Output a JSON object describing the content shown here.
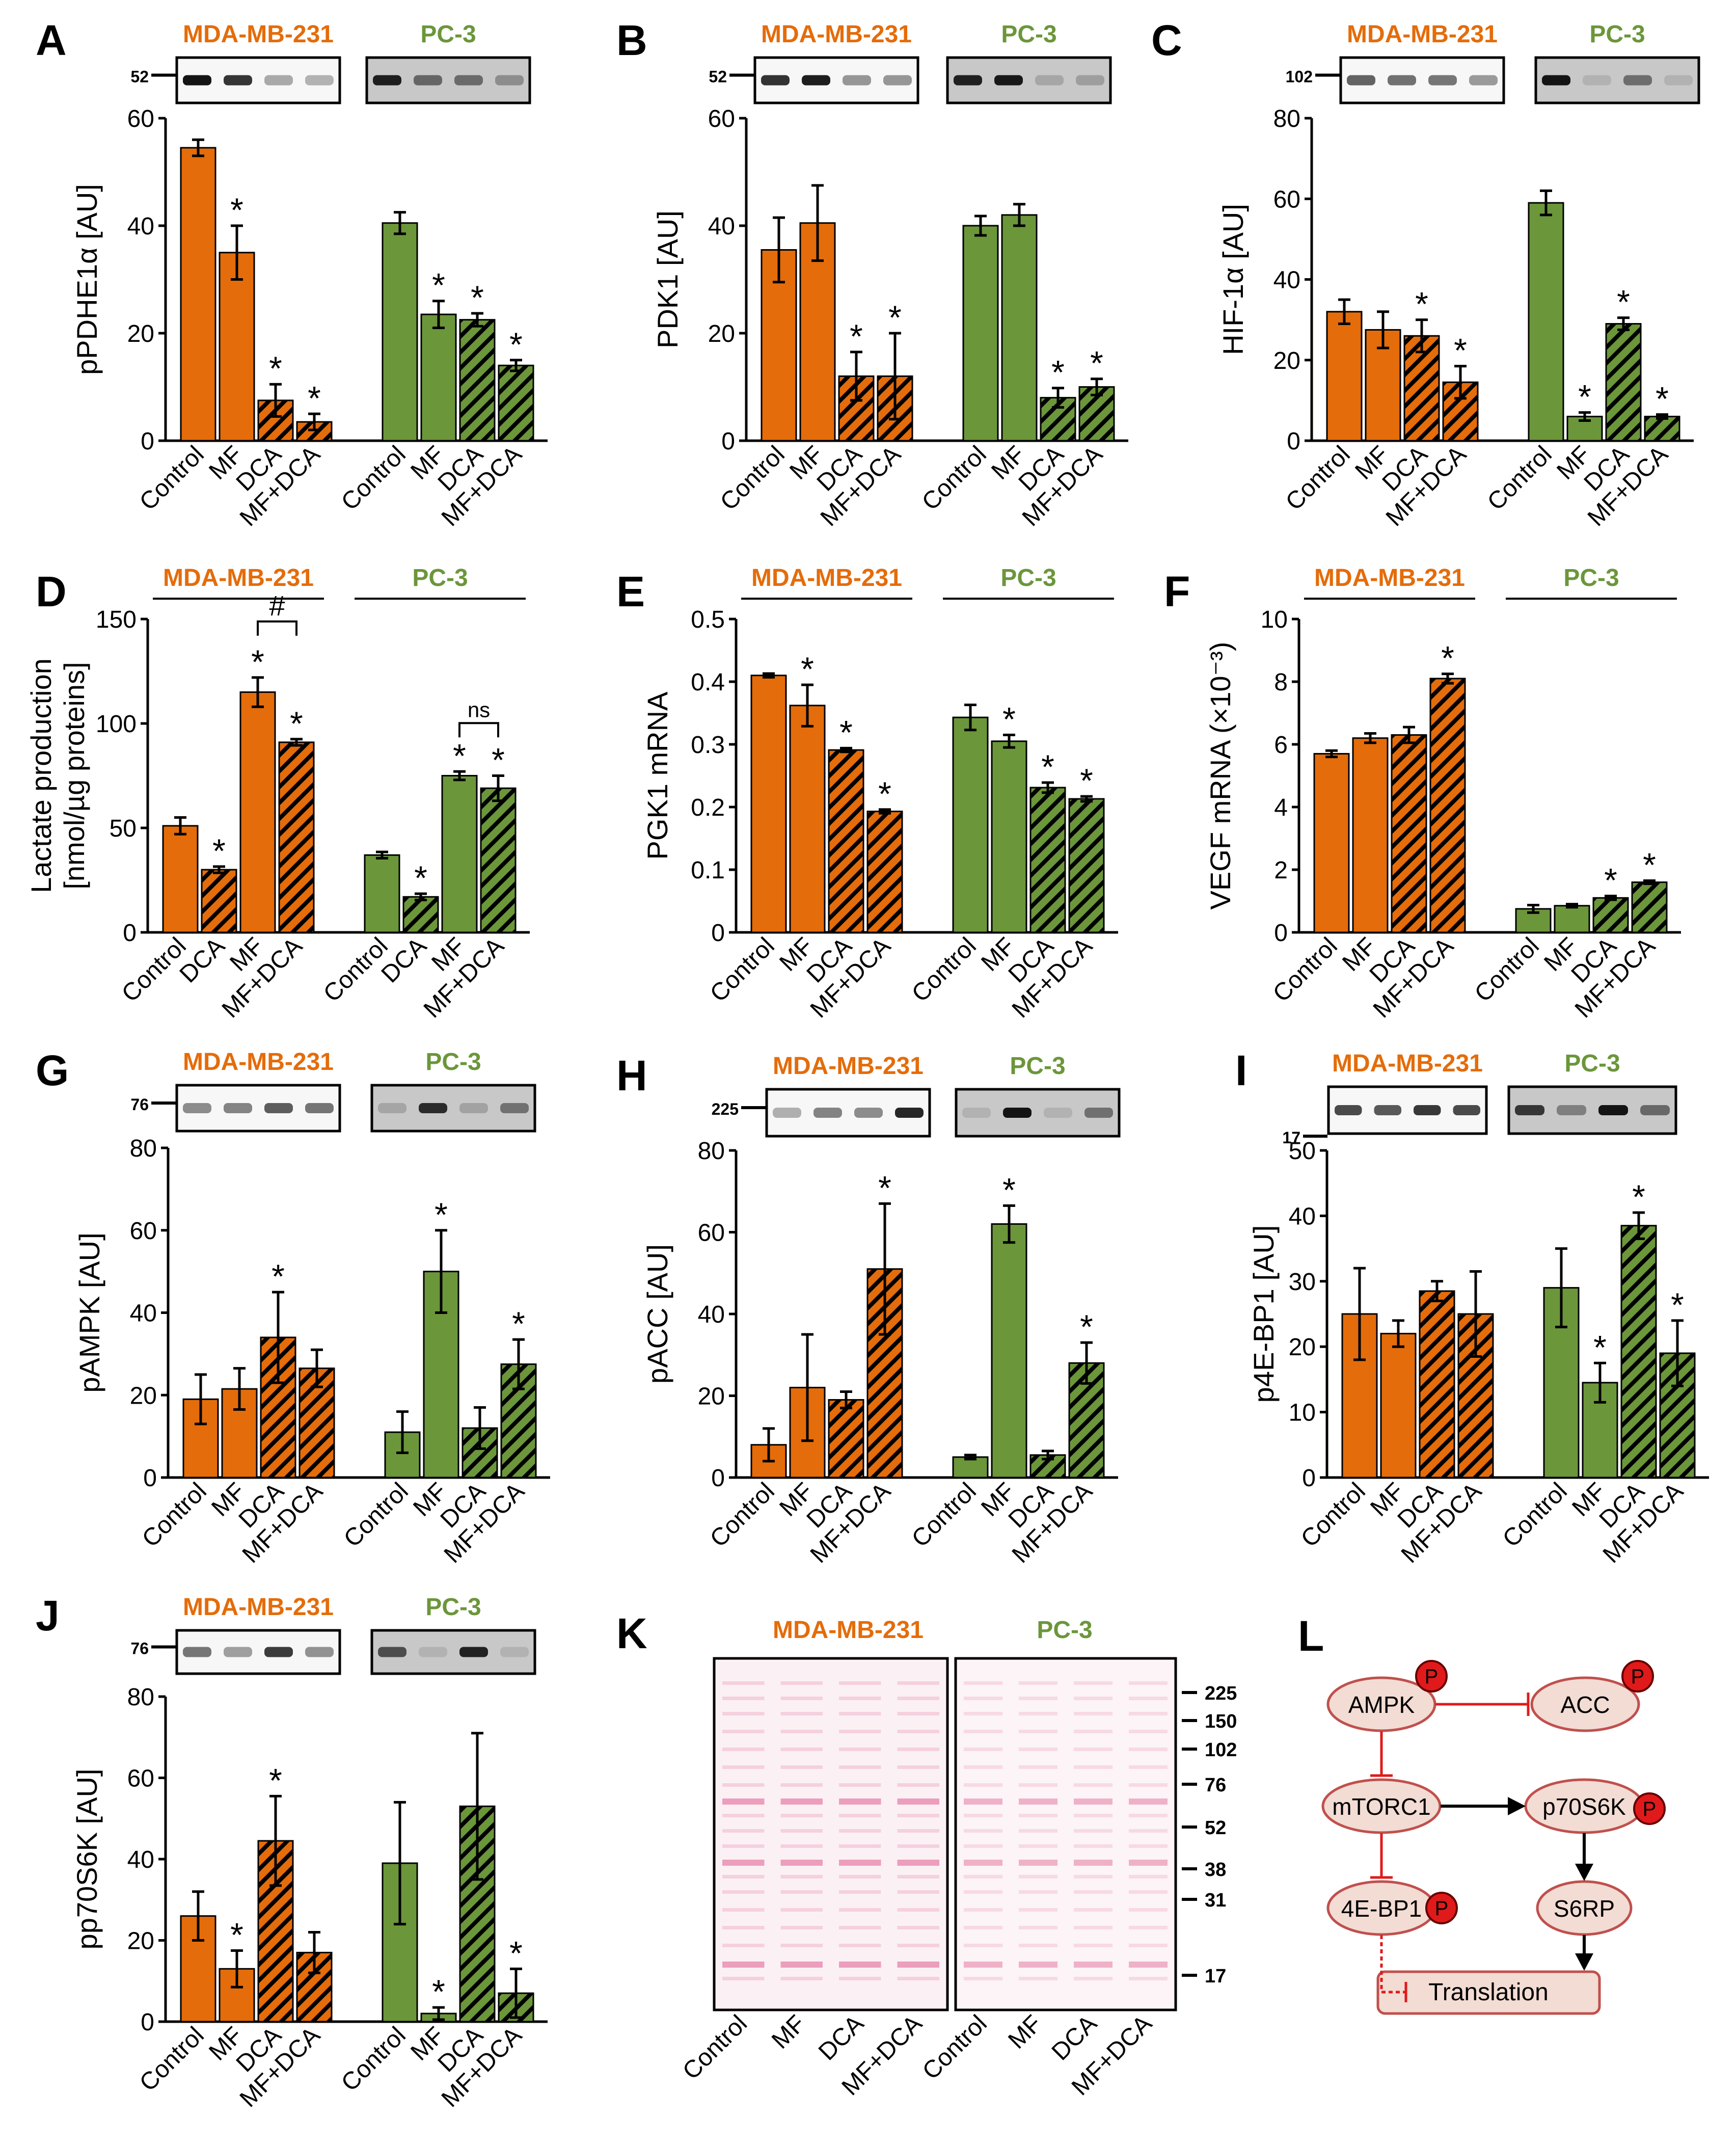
{
  "colors": {
    "orange": "#E46C0A",
    "green": "#6B963A",
    "dark": "#000000",
    "red": "#E01A1A",
    "diagram_fill": "#F2DCD4",
    "diagram_stroke": "#C0504D",
    "stain": "#E05A8C"
  },
  "cell_lines": [
    "MDA-MB-231",
    "PC-3"
  ],
  "chart_data": [
    {
      "panel": "A",
      "type": "bar",
      "ylabel": "pPDHE1α [AU]",
      "ylim": [
        0,
        60
      ],
      "yticks": [
        0,
        20,
        40,
        60
      ],
      "blot_marker": "52",
      "groups": [
        {
          "name": "MDA-MB-231",
          "categories": [
            "Control",
            "MF",
            "DCA",
            "MF+DCA"
          ],
          "values": [
            54.5,
            35,
            7.5,
            3.5
          ],
          "errors": [
            1.5,
            5,
            3,
            1.5
          ],
          "sig": [
            "",
            "*",
            "*",
            "*"
          ]
        },
        {
          "name": "PC-3",
          "categories": [
            "Control",
            "MF",
            "DCA",
            "MF+DCA"
          ],
          "values": [
            40.5,
            23.5,
            22.5,
            14
          ],
          "errors": [
            2,
            2.5,
            1.2,
            1
          ],
          "sig": [
            "",
            "*",
            "*",
            "*"
          ]
        }
      ]
    },
    {
      "panel": "B",
      "type": "bar",
      "ylabel": "PDK1 [AU]",
      "ylim": [
        0,
        60
      ],
      "yticks": [
        0,
        20,
        40,
        60
      ],
      "blot_marker": "52",
      "groups": [
        {
          "name": "MDA-MB-231",
          "categories": [
            "Control",
            "MF",
            "DCA",
            "MF+DCA"
          ],
          "values": [
            35.5,
            40.5,
            12,
            12
          ],
          "errors": [
            6,
            7,
            4.5,
            8
          ],
          "sig": [
            "",
            "",
            "*",
            "*"
          ]
        },
        {
          "name": "PC-3",
          "categories": [
            "Control",
            "MF",
            "DCA",
            "MF+DCA"
          ],
          "values": [
            40,
            42,
            8,
            10
          ],
          "errors": [
            1.8,
            2,
            1.8,
            1.5
          ],
          "sig": [
            "",
            "",
            "*",
            "*"
          ]
        }
      ]
    },
    {
      "panel": "C",
      "type": "bar",
      "ylabel": "HIF-1α [AU]",
      "ylim": [
        0,
        80
      ],
      "yticks": [
        0,
        20,
        40,
        60,
        80
      ],
      "blot_marker": "102",
      "groups": [
        {
          "name": "MDA-MB-231",
          "categories": [
            "Control",
            "MF",
            "DCA",
            "MF+DCA"
          ],
          "values": [
            32,
            27.5,
            26,
            14.5
          ],
          "errors": [
            3,
            4.5,
            4,
            4
          ],
          "sig": [
            "",
            "",
            "*",
            "*"
          ]
        },
        {
          "name": "PC-3",
          "categories": [
            "Control",
            "MF",
            "DCA",
            "MF+DCA"
          ],
          "values": [
            59,
            6,
            29,
            6
          ],
          "errors": [
            3,
            1,
            1.5,
            0.5
          ],
          "sig": [
            "",
            "*",
            "*",
            "*"
          ]
        }
      ]
    },
    {
      "panel": "D",
      "type": "bar",
      "ylabel": "Lactate production",
      "ylabel2": "[nmol/µg proteins]",
      "ylim": [
        0,
        150
      ],
      "yticks": [
        0,
        50,
        100,
        150
      ],
      "groups": [
        {
          "name": "MDA-MB-231",
          "categories": [
            "Control",
            "DCA",
            "MF",
            "MF+DCA"
          ],
          "values": [
            51,
            30,
            115,
            91
          ],
          "errors": [
            4,
            1.5,
            7,
            1.5
          ],
          "sig": [
            "",
            "*",
            "*",
            "*"
          ],
          "bracket": "#"
        },
        {
          "name": "PC-3",
          "categories": [
            "Control",
            "DCA",
            "MF",
            "MF+DCA"
          ],
          "values": [
            37,
            17,
            75,
            69
          ],
          "errors": [
            1.5,
            1.5,
            2,
            6
          ],
          "sig": [
            "",
            "*",
            "*",
            "*"
          ],
          "bracket": "ns"
        }
      ]
    },
    {
      "panel": "E",
      "type": "bar",
      "ylabel": "PGK1 mRNA",
      "ylim": [
        0,
        0.5
      ],
      "yticks": [
        "0",
        "0.1",
        "0.2",
        "0.3",
        "0.4",
        "0.5"
      ],
      "groups": [
        {
          "name": "MDA-MB-231",
          "categories": [
            "Control",
            "MF",
            "DCA",
            "MF+DCA"
          ],
          "values": [
            0.41,
            0.362,
            0.291,
            0.193
          ],
          "errors": [
            0.003,
            0.033,
            0.003,
            0.003
          ],
          "sig": [
            "",
            "*",
            "*",
            "*"
          ]
        },
        {
          "name": "PC-3",
          "categories": [
            "Control",
            "MF",
            "DCA",
            "MF+DCA"
          ],
          "values": [
            0.343,
            0.305,
            0.231,
            0.213
          ],
          "errors": [
            0.02,
            0.01,
            0.008,
            0.004
          ],
          "sig": [
            "",
            "*",
            "*",
            "*"
          ]
        }
      ]
    },
    {
      "panel": "F",
      "type": "bar",
      "ylabel": "VEGF mRNA (×10⁻³)",
      "ylim": [
        0,
        10
      ],
      "yticks": [
        0,
        2,
        4,
        6,
        8,
        10
      ],
      "groups": [
        {
          "name": "MDA-MB-231",
          "categories": [
            "Control",
            "MF",
            "DCA",
            "MF+DCA"
          ],
          "values": [
            5.7,
            6.2,
            6.3,
            8.1
          ],
          "errors": [
            0.1,
            0.15,
            0.25,
            0.15
          ],
          "sig": [
            "",
            "",
            "",
            "*"
          ]
        },
        {
          "name": "PC-3",
          "categories": [
            "Control",
            "MF",
            "DCA",
            "MF+DCA"
          ],
          "values": [
            0.75,
            0.85,
            1.1,
            1.6
          ],
          "errors": [
            0.12,
            0.05,
            0.06,
            0.05
          ],
          "sig": [
            "",
            "",
            "*",
            "*"
          ]
        }
      ]
    },
    {
      "panel": "G",
      "type": "bar",
      "ylabel": "pAMPK [AU]",
      "ylim": [
        0,
        80
      ],
      "yticks": [
        0,
        20,
        40,
        60,
        80
      ],
      "blot_marker": "76",
      "groups": [
        {
          "name": "MDA-MB-231",
          "categories": [
            "Control",
            "MF",
            "DCA",
            "MF+DCA"
          ],
          "values": [
            19,
            21.5,
            34,
            26.5
          ],
          "errors": [
            6,
            5,
            11,
            4.5
          ],
          "sig": [
            "",
            "",
            "*",
            ""
          ]
        },
        {
          "name": "PC-3",
          "categories": [
            "Control",
            "MF",
            "DCA",
            "MF+DCA"
          ],
          "values": [
            11,
            50,
            12,
            27.5
          ],
          "errors": [
            5,
            10,
            5,
            6
          ],
          "sig": [
            "",
            "*",
            "",
            "*"
          ]
        }
      ]
    },
    {
      "panel": "H",
      "type": "bar",
      "ylabel": "pACC [AU]",
      "ylim": [
        0,
        80
      ],
      "yticks": [
        0,
        20,
        40,
        60,
        80
      ],
      "blot_marker": "225",
      "groups": [
        {
          "name": "MDA-MB-231",
          "categories": [
            "Control",
            "MF",
            "DCA",
            "MF+DCA"
          ],
          "values": [
            8,
            22,
            19,
            51
          ],
          "errors": [
            4,
            13,
            2,
            16
          ],
          "sig": [
            "",
            "",
            "",
            "*"
          ]
        },
        {
          "name": "PC-3",
          "categories": [
            "Control",
            "MF",
            "DCA",
            "MF+DCA"
          ],
          "values": [
            5,
            62,
            5.5,
            28
          ],
          "errors": [
            0.5,
            4.5,
            1,
            5
          ],
          "sig": [
            "",
            "*",
            "",
            "*"
          ]
        }
      ]
    },
    {
      "panel": "I",
      "type": "bar",
      "ylabel": "p4E-BP1 [AU]",
      "ylim": [
        0,
        50
      ],
      "yticks": [
        0,
        10,
        20,
        30,
        40,
        50
      ],
      "blot_marker": "17",
      "groups": [
        {
          "name": "MDA-MB-231",
          "categories": [
            "Control",
            "MF",
            "DCA",
            "MF+DCA"
          ],
          "values": [
            25,
            22,
            28.5,
            25
          ],
          "errors": [
            7,
            2,
            1.5,
            6.5
          ],
          "sig": [
            "",
            "",
            "",
            ""
          ]
        },
        {
          "name": "PC-3",
          "categories": [
            "Control",
            "MF",
            "DCA",
            "MF+DCA"
          ],
          "values": [
            29,
            14.5,
            38.5,
            19
          ],
          "errors": [
            6,
            3,
            2,
            5
          ],
          "sig": [
            "",
            "*",
            "*",
            "*"
          ]
        }
      ]
    },
    {
      "panel": "J",
      "type": "bar",
      "ylabel": "pp70S6K [AU]",
      "ylim": [
        0,
        80
      ],
      "yticks": [
        0,
        20,
        40,
        60,
        80
      ],
      "blot_marker": "76",
      "groups": [
        {
          "name": "MDA-MB-231",
          "categories": [
            "Control",
            "MF",
            "DCA",
            "MF+DCA"
          ],
          "values": [
            26,
            13,
            44.5,
            17
          ],
          "errors": [
            6,
            4.5,
            11,
            5
          ],
          "sig": [
            "",
            "*",
            "*",
            ""
          ]
        },
        {
          "name": "PC-3",
          "categories": [
            "Control",
            "MF",
            "DCA",
            "MF+DCA"
          ],
          "values": [
            39,
            2,
            53,
            7
          ],
          "errors": [
            15,
            1.5,
            18,
            6
          ],
          "sig": [
            "",
            "*",
            "",
            "*"
          ]
        }
      ]
    }
  ],
  "panel_K": {
    "label": "K",
    "lanes": [
      "Control",
      "MF",
      "DCA",
      "MF+DCA"
    ],
    "markers": [
      "225",
      "150",
      "102",
      "76",
      "52",
      "38",
      "31",
      "17"
    ]
  },
  "panel_L": {
    "label": "L",
    "nodes": {
      "ampk": "AMPK",
      "acc": "ACC",
      "mtorc1": "mTORC1",
      "p70s6k": "p70S6K",
      "ebp1": "4E-BP1",
      "s6rp": "S6RP",
      "translation": "Translation"
    },
    "phospho": "P"
  }
}
